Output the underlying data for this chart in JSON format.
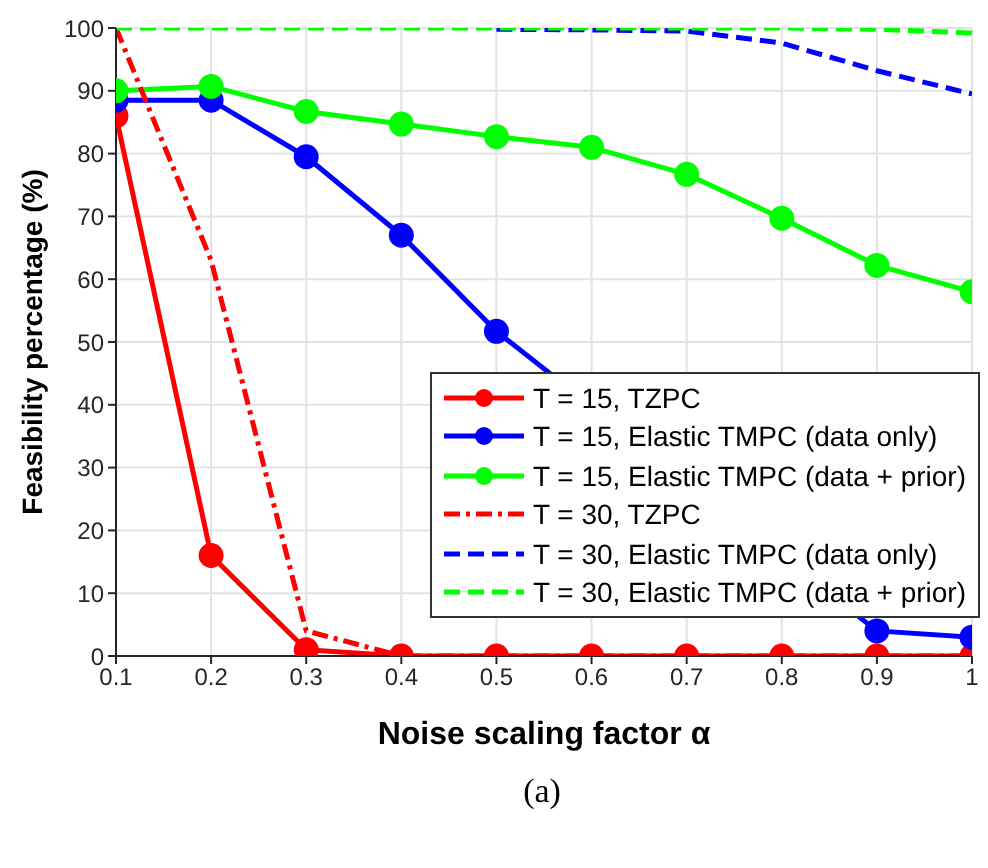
{
  "chart_data": {
    "type": "line",
    "xlabel": "Noise scaling factor α",
    "ylabel": "Feasibility percentage (%)",
    "annotations": [
      "(a)"
    ],
    "x": [
      0.1,
      0.2,
      0.3,
      0.4,
      0.5,
      0.6,
      0.7,
      0.8,
      0.9,
      1
    ],
    "xlim": [
      0.1,
      1
    ],
    "xticks": [
      0.1,
      0.2,
      0.3,
      0.4,
      0.5,
      0.6,
      0.7,
      0.8,
      0.9,
      1
    ],
    "ylim": [
      0,
      100
    ],
    "yticks": [
      0,
      10,
      20,
      30,
      40,
      50,
      60,
      70,
      80,
      90,
      100
    ],
    "grid": true,
    "legend": "bottom right",
    "series": [
      {
        "name": "T = 15, TZPC",
        "color": "#ff0000",
        "marker": "circle",
        "line_style": "solid",
        "values": [
          86,
          16,
          1,
          0,
          0,
          0,
          0,
          0,
          0,
          0
        ]
      },
      {
        "name": "T = 15, Elastic TMPC (data only)",
        "color": "#0000ff",
        "marker": "circle",
        "line_style": "solid",
        "values": [
          88.5,
          88.5,
          79.5,
          67,
          51.7,
          null,
          null,
          null,
          4,
          3
        ]
      },
      {
        "name": "T = 15, Elastic TMPC (data + prior)",
        "color": "#00ff00",
        "marker": "circle",
        "line_style": "solid",
        "values": [
          90,
          90.7,
          86.7,
          84.7,
          82.7,
          81,
          76.7,
          69.7,
          62.2,
          58
        ]
      },
      {
        "name": "T = 30, TZPC",
        "color": "#ff0000",
        "marker": "none",
        "line_style": "dashdot",
        "values": [
          100,
          63,
          4,
          0,
          0,
          0,
          0,
          0,
          0,
          0
        ]
      },
      {
        "name": "T = 30, Elastic TMPC (data only)",
        "color": "#0000ff",
        "marker": "none",
        "line_style": "dashed",
        "values": [
          null,
          null,
          null,
          null,
          99.8,
          99.7,
          99.5,
          97.6,
          93.2,
          89.5
        ]
      },
      {
        "name": "T = 30, Elastic TMPC (data + prior)",
        "color": "#00ff00",
        "marker": "none",
        "line_style": "dashed",
        "values": [
          100,
          100,
          100,
          100,
          100,
          100,
          100,
          100,
          99.8,
          99.2
        ]
      }
    ]
  }
}
